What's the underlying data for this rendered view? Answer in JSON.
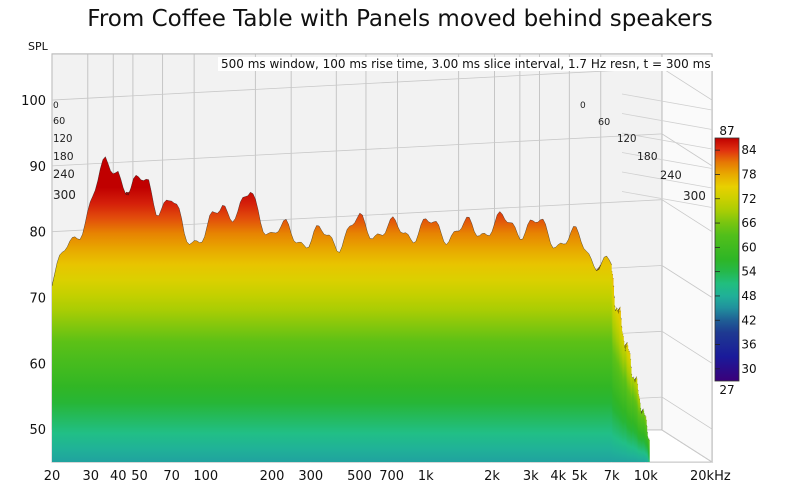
{
  "title": "From Coffee Table with Panels moved behind speakers",
  "caption": "500 ms window, 100 ms rise time, 3.00 ms slice interval, 1.7 Hz resn, t = 300 ms",
  "chart_data": {
    "type": "waterfall",
    "ylabel": "SPL",
    "xunit": "kHz",
    "y_ticks": [
      100,
      90,
      80,
      70,
      60,
      50
    ],
    "ylim": [
      45,
      107
    ],
    "x_ticks": [
      "20",
      "30",
      "40",
      "50",
      "70",
      "100",
      "200",
      "300",
      "500",
      "700",
      "1k",
      "2k",
      "3k",
      "4k",
      "5k",
      "7k",
      "10k",
      "20kHz"
    ],
    "x_tick_values": [
      20,
      30,
      40,
      50,
      70,
      100,
      200,
      300,
      500,
      700,
      1000,
      2000,
      3000,
      4000,
      5000,
      7000,
      10000,
      20000
    ],
    "time_labels": [
      "0",
      "60",
      "120",
      "180",
      "240",
      "300"
    ],
    "colorbar": {
      "min": "27",
      "max": "87",
      "ticks": [
        "84",
        "78",
        "72",
        "66",
        "60",
        "54",
        "48",
        "42",
        "36",
        "30"
      ],
      "tick_values": [
        84,
        78,
        72,
        66,
        60,
        54,
        48,
        42,
        36,
        30
      ],
      "range": [
        27,
        87
      ]
    },
    "front_slice": {
      "name": "t = 0",
      "freq_hz": [
        20,
        25,
        30,
        35,
        40,
        45,
        50,
        55,
        60,
        70,
        80,
        100,
        120,
        140,
        160,
        200,
        250,
        300,
        400,
        500,
        700,
        1000,
        1500,
        2000,
        3000,
        4000,
        5000,
        6000,
        7000
      ],
      "spl_db": [
        73.5,
        78,
        85,
        89.5,
        90,
        86,
        87,
        87.5,
        84.5,
        84,
        80,
        79,
        84.5,
        83,
        85,
        80,
        79.5,
        79,
        79,
        81,
        80,
        80.5,
        80,
        81,
        81,
        79,
        78.5,
        76,
        74
      ]
    },
    "back_slice": {
      "name": "t = 300",
      "freq_hz": [
        20,
        40,
        60,
        70,
        100,
        200,
        500,
        1000,
        2000,
        5000,
        7000,
        9000
      ],
      "spl_db": [
        47,
        47,
        47,
        47,
        50,
        51,
        51,
        51.5,
        51,
        51,
        51,
        51.5
      ]
    }
  }
}
